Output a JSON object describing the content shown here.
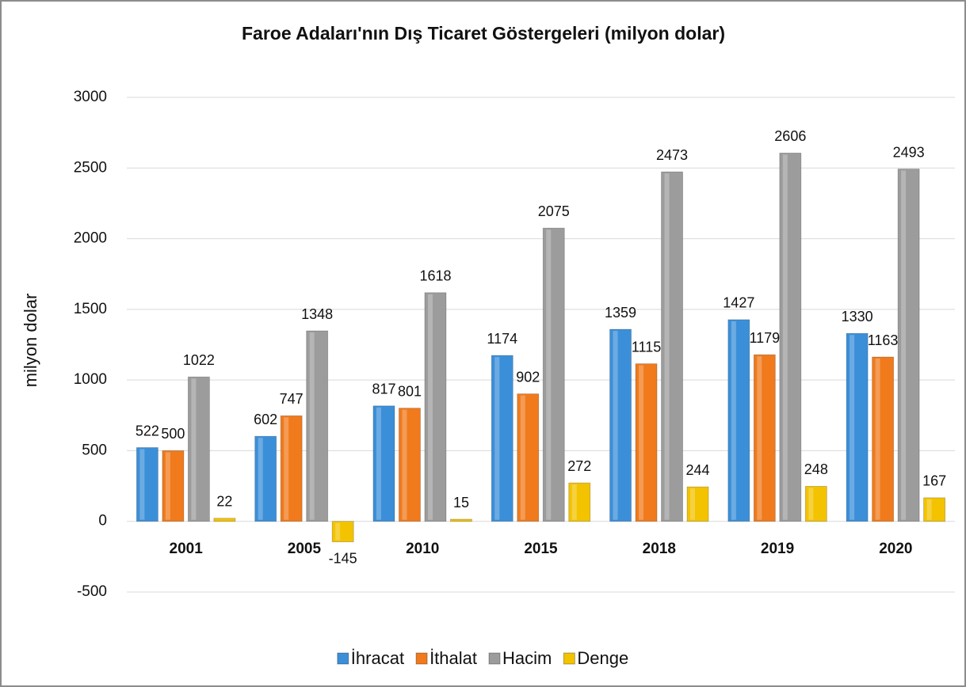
{
  "chart_data": {
    "type": "bar",
    "title": "Faroe Adaları'nın Dış Ticaret Göstergeleri  (milyon dolar)",
    "y_label": "milyon dolar",
    "categories": [
      "2001",
      "2005",
      "2010",
      "2015",
      "2018",
      "2019",
      "2020"
    ],
    "series": [
      {
        "name": "İhracat",
        "color": "#3b8fd9",
        "values": [
          522,
          602,
          817,
          1174,
          1359,
          1427,
          1330
        ]
      },
      {
        "name": "İthalat",
        "color": "#f07a1c",
        "values": [
          500,
          747,
          801,
          902,
          1115,
          1179,
          1163
        ]
      },
      {
        "name": "Hacim",
        "color": "#9c9c9c",
        "values": [
          1022,
          1348,
          1618,
          2075,
          2473,
          2606,
          2493
        ]
      },
      {
        "name": "Denge",
        "color": "#f3c300",
        "values": [
          22,
          -145,
          15,
          272,
          244,
          248,
          167
        ]
      }
    ],
    "ylim": [
      -500,
      3000
    ],
    "yticks": [
      -500,
      0,
      500,
      1000,
      1500,
      2000,
      2500,
      3000
    ],
    "grid": true,
    "legend": "bottom"
  }
}
